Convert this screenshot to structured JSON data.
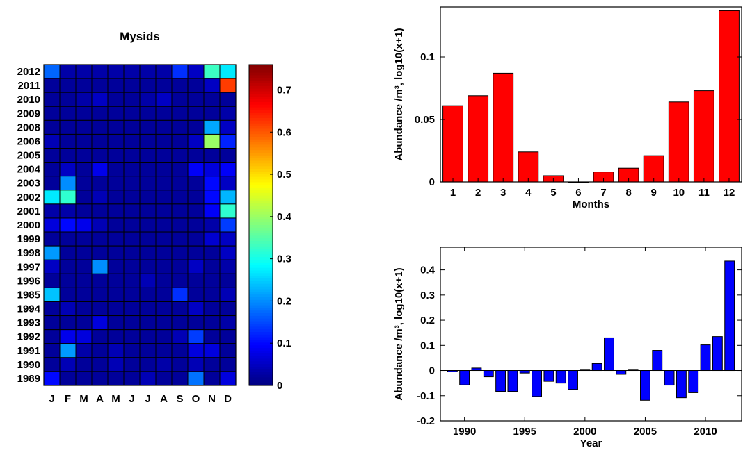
{
  "chart_data": [
    {
      "type": "heatmap",
      "title": "Mysids",
      "xlabel": "",
      "ylabel": "",
      "x_labels": [
        "J",
        "F",
        "M",
        "A",
        "M",
        "J",
        "J",
        "A",
        "S",
        "O",
        "N",
        "D"
      ],
      "y_labels": [
        "2012",
        "2011",
        "2010",
        "2009",
        "2008",
        "2006",
        "2005",
        "2004",
        "2003",
        "2002",
        "2001",
        "2000",
        "1999",
        "1998",
        "1997",
        "1996",
        "1985",
        "1994",
        "1993",
        "1992",
        "1991",
        "1990",
        "1989"
      ],
      "values": [
        [
          0.17,
          0.03,
          0.03,
          0.03,
          0.03,
          0.03,
          0.03,
          0.03,
          0.13,
          0.05,
          0.33,
          0.27
        ],
        [
          0.02,
          0.02,
          0.02,
          0.02,
          0.02,
          0.02,
          0.02,
          0.02,
          0.02,
          0.02,
          0.05,
          0.62
        ],
        [
          0.02,
          0.02,
          0.03,
          0.05,
          0.02,
          0.02,
          0.03,
          0.05,
          0.02,
          0.02,
          0.02,
          0.02
        ],
        [
          0.02,
          0.02,
          0.02,
          0.02,
          0.02,
          0.02,
          0.02,
          0.02,
          0.02,
          0.02,
          0.02,
          0.03
        ],
        [
          0.02,
          0.02,
          0.02,
          0.02,
          0.02,
          0.02,
          0.02,
          0.02,
          0.02,
          0.02,
          0.22,
          0.05
        ],
        [
          0.04,
          0.02,
          0.02,
          0.02,
          0.02,
          0.02,
          0.02,
          0.02,
          0.02,
          0.05,
          0.4,
          0.12
        ],
        [
          0.02,
          0.02,
          0.02,
          0.02,
          0.02,
          0.02,
          0.02,
          0.02,
          0.02,
          0.02,
          0.02,
          0.02
        ],
        [
          0.02,
          0.05,
          0.02,
          0.08,
          0.02,
          0.02,
          0.02,
          0.02,
          0.02,
          0.09,
          0.07,
          0.09
        ],
        [
          0.02,
          0.2,
          0.02,
          0.02,
          0.02,
          0.02,
          0.02,
          0.02,
          0.02,
          0.02,
          0.1,
          0.05
        ],
        [
          0.27,
          0.32,
          0.02,
          0.04,
          0.02,
          0.02,
          0.02,
          0.02,
          0.02,
          0.02,
          0.1,
          0.23
        ],
        [
          0.03,
          0.03,
          0.02,
          0.02,
          0.02,
          0.02,
          0.02,
          0.02,
          0.02,
          0.02,
          0.09,
          0.32
        ],
        [
          0.07,
          0.1,
          0.08,
          0.04,
          0.02,
          0.02,
          0.02,
          0.02,
          0.02,
          0.02,
          0.03,
          0.14
        ],
        [
          0.02,
          0.02,
          0.02,
          0.02,
          0.02,
          0.02,
          0.02,
          0.02,
          0.02,
          0.02,
          0.06,
          0.05
        ],
        [
          0.21,
          0.02,
          0.02,
          0.02,
          0.02,
          0.02,
          0.02,
          0.02,
          0.02,
          0.02,
          0.02,
          0.05
        ],
        [
          0.05,
          0.02,
          0.02,
          0.2,
          0.02,
          0.02,
          0.02,
          0.02,
          0.02,
          0.05,
          0.02,
          0.03
        ],
        [
          0.02,
          0.02,
          0.02,
          0.02,
          0.02,
          0.02,
          0.04,
          0.02,
          0.02,
          0.02,
          0.02,
          0.02
        ],
        [
          0.24,
          0.02,
          0.02,
          0.02,
          0.02,
          0.02,
          0.02,
          0.02,
          0.13,
          0.02,
          0.02,
          0.04
        ],
        [
          0.02,
          0.04,
          0.02,
          0.02,
          0.02,
          0.02,
          0.02,
          0.02,
          0.02,
          0.05,
          0.02,
          0.02
        ],
        [
          0.02,
          0.02,
          0.02,
          0.07,
          0.02,
          0.02,
          0.02,
          0.02,
          0.02,
          0.02,
          0.02,
          0.03
        ],
        [
          0.02,
          0.08,
          0.07,
          0.02,
          0.02,
          0.02,
          0.02,
          0.02,
          0.04,
          0.14,
          0.02,
          0.02
        ],
        [
          0.02,
          0.21,
          0.03,
          0.02,
          0.04,
          0.02,
          0.02,
          0.02,
          0.02,
          0.07,
          0.07,
          0.02
        ],
        [
          0.02,
          0.04,
          0.02,
          0.02,
          0.04,
          0.02,
          0.02,
          0.03,
          0.02,
          0.04,
          0.02,
          0.02
        ],
        [
          0.1,
          0.02,
          0.02,
          0.02,
          0.02,
          0.02,
          0.04,
          0.02,
          0.02,
          0.18,
          0.02,
          0.07
        ]
      ],
      "colorbar": {
        "ticks": [
          "0",
          "0.1",
          "0.2",
          "0.3",
          "0.4",
          "0.5",
          "0.6",
          "0.7"
        ],
        "tick_values": [
          0,
          0.1,
          0.2,
          0.3,
          0.4,
          0.5,
          0.6,
          0.7
        ],
        "range": [
          0,
          0.76
        ],
        "colormap": "jet"
      }
    },
    {
      "type": "bar",
      "title": "",
      "xlabel": "Months",
      "ylabel": "Abundance /m³, log10(x+1)",
      "categories": [
        "1",
        "2",
        "3",
        "4",
        "5",
        "6",
        "7",
        "8",
        "9",
        "10",
        "11",
        "12"
      ],
      "values": [
        0.061,
        0.069,
        0.087,
        0.024,
        0.005,
        0.0,
        0.008,
        0.011,
        0.021,
        0.064,
        0.073,
        0.137
      ],
      "ylim": [
        0,
        0.14
      ],
      "yticks": [
        "0",
        "0.05",
        "0.1"
      ],
      "ytick_values": [
        0,
        0.05,
        0.1
      ],
      "color": "#ff0000"
    },
    {
      "type": "bar",
      "title": "",
      "xlabel": "Year",
      "ylabel": "Abundance /m³, log10(x+1)",
      "x": [
        1989,
        1990,
        1991,
        1992,
        1993,
        1994,
        1995,
        1996,
        1997,
        1998,
        1999,
        2000,
        2001,
        2002,
        2003,
        2004,
        2005,
        2006,
        2007,
        2008,
        2009,
        2010,
        2011,
        2012
      ],
      "values": [
        -0.005,
        -0.057,
        0.01,
        -0.025,
        -0.083,
        -0.083,
        -0.01,
        -0.103,
        -0.043,
        -0.05,
        -0.075,
        0.002,
        0.028,
        0.13,
        -0.015,
        0.002,
        -0.118,
        0.08,
        -0.058,
        -0.108,
        -0.088,
        0.102,
        0.135,
        0.435
      ],
      "xlim": [
        1988,
        2013
      ],
      "ylim": [
        -0.2,
        0.49
      ],
      "xticks": [
        "1990",
        "1995",
        "2000",
        "2005",
        "2010"
      ],
      "xtick_values": [
        1990,
        1995,
        2000,
        2005,
        2010
      ],
      "yticks": [
        "-0.2",
        "-0.1",
        "0",
        "0.1",
        "0.2",
        "0.3",
        "0.4"
      ],
      "ytick_values": [
        -0.2,
        -0.1,
        0,
        0.1,
        0.2,
        0.3,
        0.4
      ],
      "color": "#0000ff"
    }
  ]
}
